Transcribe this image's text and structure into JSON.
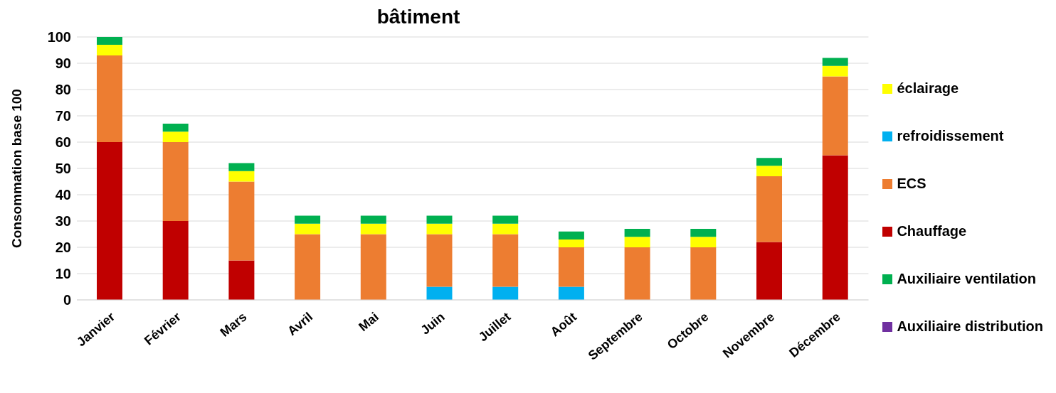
{
  "chart_data": {
    "type": "bar",
    "title": "bâtiment",
    "ylabel": "Consommation base 100",
    "stacked": true,
    "legend": "right",
    "grid": "y",
    "categories": [
      "Janvier",
      "Février",
      "Mars",
      "Avril",
      "Mai",
      "Juin",
      "Juillet",
      "Août",
      "Septembre",
      "Octobre",
      "Novembre",
      "Décembre"
    ],
    "ylim": [
      0,
      100
    ],
    "yticks": [
      0,
      10,
      20,
      30,
      40,
      50,
      60,
      70,
      80,
      90,
      100
    ],
    "series": [
      {
        "name": "Chauffage",
        "color": "#c00000",
        "values": [
          60,
          30,
          15,
          0,
          0,
          0,
          0,
          0,
          0,
          0,
          22,
          55
        ]
      },
      {
        "name": "refroidissement",
        "color": "#00b0f0",
        "values": [
          0,
          0,
          0,
          0,
          0,
          5,
          5,
          5,
          0,
          0,
          0,
          0
        ]
      },
      {
        "name": "ECS",
        "color": "#ed7d31",
        "values": [
          33,
          30,
          30,
          25,
          25,
          20,
          20,
          15,
          20,
          20,
          25,
          30
        ]
      },
      {
        "name": "éclairage",
        "color": "#ffff00",
        "values": [
          4,
          4,
          4,
          4,
          4,
          4,
          4,
          3,
          4,
          4,
          4,
          4
        ]
      },
      {
        "name": "Auxiliaire ventilation",
        "color": "#00b050",
        "values": [
          3,
          3,
          3,
          3,
          3,
          3,
          3,
          3,
          3,
          3,
          3,
          3
        ]
      },
      {
        "name": "Auxiliaire distribution",
        "color": "#7030a0",
        "values": [
          0,
          0,
          0,
          0,
          0,
          0,
          0,
          0,
          0,
          0,
          0,
          0
        ]
      }
    ]
  }
}
